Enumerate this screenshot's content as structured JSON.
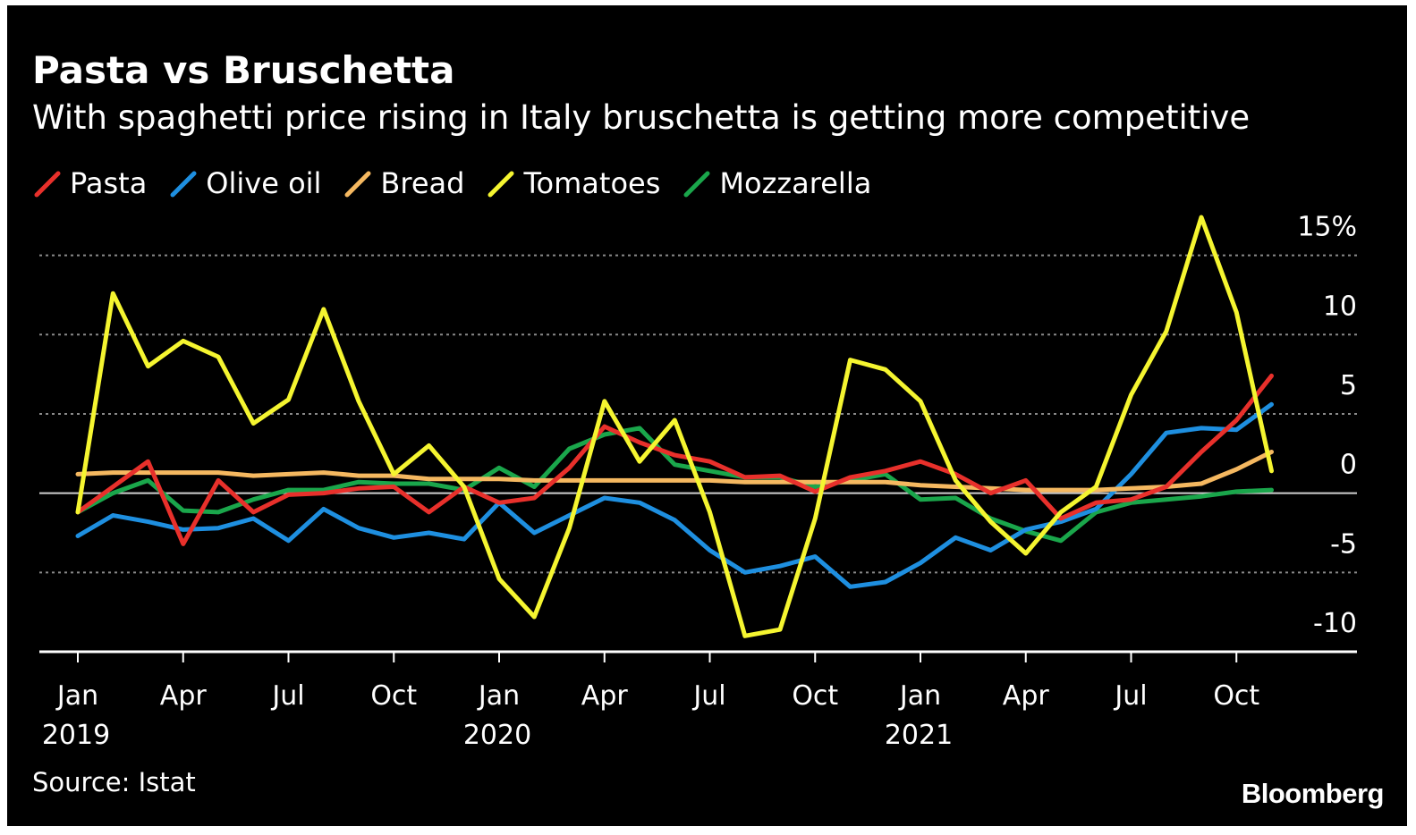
{
  "title": "Pasta vs Bruschetta",
  "subtitle": "With spaghetti price rising in Italy bruschetta is getting more competitive",
  "source": "Source: Istat",
  "brand": "Bloomberg",
  "chart_data": {
    "type": "line",
    "y_unit": "%",
    "ylim": [
      -10,
      15
    ],
    "y_ticks": [
      15,
      10,
      5,
      0,
      -5,
      -10
    ],
    "y_tick_labels": [
      "15%",
      "10",
      "5",
      "0",
      "-5",
      "-10"
    ],
    "x_ticks": [
      {
        "month": "2019-01",
        "label": "Jan",
        "year": "2019"
      },
      {
        "month": "2019-04",
        "label": "Apr",
        "year": ""
      },
      {
        "month": "2019-07",
        "label": "Jul",
        "year": ""
      },
      {
        "month": "2019-10",
        "label": "Oct",
        "year": ""
      },
      {
        "month": "2020-01",
        "label": "Jan",
        "year": "2020"
      },
      {
        "month": "2020-04",
        "label": "Apr",
        "year": ""
      },
      {
        "month": "2020-07",
        "label": "Jul",
        "year": ""
      },
      {
        "month": "2020-10",
        "label": "Oct",
        "year": ""
      },
      {
        "month": "2021-01",
        "label": "Jan",
        "year": "2021"
      },
      {
        "month": "2021-04",
        "label": "Apr",
        "year": ""
      },
      {
        "month": "2021-07",
        "label": "Jul",
        "year": ""
      },
      {
        "month": "2021-10",
        "label": "Oct",
        "year": ""
      }
    ],
    "x": [
      "2019-01",
      "2019-02",
      "2019-03",
      "2019-04",
      "2019-05",
      "2019-06",
      "2019-07",
      "2019-08",
      "2019-09",
      "2019-10",
      "2019-11",
      "2019-12",
      "2020-01",
      "2020-02",
      "2020-03",
      "2020-04",
      "2020-05",
      "2020-06",
      "2020-07",
      "2020-08",
      "2020-09",
      "2020-10",
      "2020-11",
      "2020-12",
      "2021-01",
      "2021-02",
      "2021-03",
      "2021-04",
      "2021-05",
      "2021-06",
      "2021-07",
      "2021-08",
      "2021-09",
      "2021-10",
      "2021-11"
    ],
    "grid": true,
    "legend_position": "top-left",
    "series": [
      {
        "name": "Pasta",
        "color": "#e8302b",
        "values": [
          -1.2,
          0.4,
          2.0,
          -3.2,
          0.8,
          -1.2,
          -0.1,
          0.0,
          0.3,
          0.4,
          -1.2,
          0.4,
          -0.6,
          -0.3,
          1.6,
          4.2,
          3.2,
          2.4,
          2.0,
          1.0,
          1.1,
          0.1,
          1.0,
          1.4,
          2.0,
          1.2,
          0.0,
          0.8,
          -1.6,
          -0.6,
          -0.4,
          0.4,
          2.6,
          4.6,
          7.4
        ]
      },
      {
        "name": "Olive oil",
        "color": "#1e8fe0",
        "values": [
          -2.7,
          -1.4,
          -1.8,
          -2.3,
          -2.2,
          -1.6,
          -3.0,
          -1.0,
          -2.2,
          -2.8,
          -2.5,
          -2.9,
          -0.6,
          -2.5,
          -1.4,
          -0.3,
          -0.6,
          -1.7,
          -3.6,
          -5.0,
          -4.6,
          -4.0,
          -5.9,
          -5.6,
          -4.4,
          -2.8,
          -3.6,
          -2.3,
          -1.8,
          -1.0,
          1.2,
          3.8,
          4.1,
          4.0,
          5.6
        ]
      },
      {
        "name": "Bread",
        "color": "#f5b860",
        "values": [
          1.2,
          1.3,
          1.3,
          1.3,
          1.3,
          1.1,
          1.2,
          1.3,
          1.1,
          1.1,
          0.9,
          0.9,
          0.9,
          0.8,
          0.8,
          0.8,
          0.8,
          0.8,
          0.8,
          0.7,
          0.7,
          0.7,
          0.7,
          0.7,
          0.5,
          0.4,
          0.3,
          0.2,
          0.2,
          0.2,
          0.3,
          0.4,
          0.6,
          1.5,
          2.6
        ]
      },
      {
        "name": "Tomatoes",
        "color": "#f5f530",
        "values": [
          -1.2,
          12.6,
          8.0,
          9.6,
          8.6,
          4.4,
          5.9,
          11.6,
          5.8,
          1.2,
          3.0,
          0.4,
          -5.4,
          -7.8,
          -2.2,
          5.8,
          2.0,
          4.6,
          -1.2,
          -9.0,
          -8.6,
          -1.6,
          8.4,
          7.8,
          5.8,
          0.8,
          -1.8,
          -3.8,
          -1.2,
          0.4,
          6.2,
          10.2,
          17.4,
          11.4,
          1.4
        ]
      },
      {
        "name": "Mozzarella",
        "color": "#1aa64b",
        "values": [
          -1.2,
          0.0,
          0.8,
          -1.1,
          -1.2,
          -0.4,
          0.2,
          0.2,
          0.7,
          0.6,
          0.6,
          0.2,
          1.6,
          0.4,
          2.8,
          3.7,
          4.1,
          1.8,
          1.4,
          1.0,
          1.0,
          0.4,
          0.8,
          1.2,
          -0.4,
          -0.3,
          -1.6,
          -2.4,
          -3.0,
          -1.2,
          -0.6,
          -0.4,
          -0.2,
          0.1,
          0.2
        ]
      }
    ]
  }
}
